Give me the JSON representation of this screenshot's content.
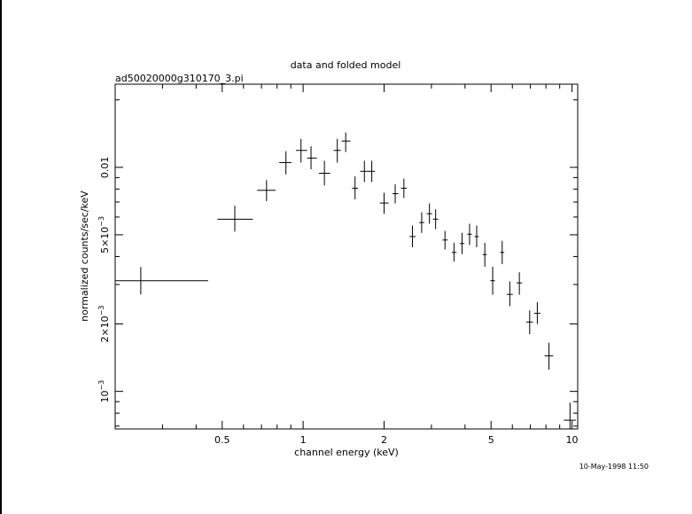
{
  "chart_data": {
    "type": "scatter",
    "title": "data and folded model",
    "subtitle": "ad50020000g310170_3.pi",
    "xlabel": "channel energy (keV)",
    "ylabel": "normalized counts/sec/keV",
    "timestamp": "10-May-1998 11:50",
    "x_scale": "log",
    "y_scale": "log",
    "xlim": [
      0.2,
      10.5
    ],
    "ylim": [
      0.00068,
      0.0235
    ],
    "grid": false,
    "x_ticks": [
      {
        "value": 0.5,
        "label": "0.5"
      },
      {
        "value": 1,
        "label": "1"
      },
      {
        "value": 2,
        "label": "2"
      },
      {
        "value": 5,
        "label": "5"
      },
      {
        "value": 10,
        "label": "10"
      }
    ],
    "y_ticks": [
      {
        "value": 0.001,
        "label": "10",
        "exp": "−3"
      },
      {
        "value": 0.002,
        "label": "2×10",
        "exp": "−3"
      },
      {
        "value": 0.005,
        "label": "5×10",
        "exp": "−3"
      },
      {
        "value": 0.01,
        "label": "0.01",
        "exp": ""
      }
    ],
    "series": [
      {
        "points": [
          {
            "x": 0.249,
            "xlo": 0.2,
            "xhi": 0.443,
            "y": 0.00312,
            "ylo": 0.00271,
            "yhi": 0.00359
          },
          {
            "x": 0.557,
            "xlo": 0.48,
            "xhi": 0.65,
            "y": 0.00587,
            "ylo": 0.00517,
            "yhi": 0.00674
          },
          {
            "x": 0.731,
            "xlo": 0.675,
            "xhi": 0.79,
            "y": 0.0079,
            "ylo": 0.00707,
            "yhi": 0.00877
          },
          {
            "x": 0.863,
            "xlo": 0.815,
            "xhi": 0.905,
            "y": 0.0105,
            "ylo": 0.0093,
            "yhi": 0.0118
          },
          {
            "x": 0.982,
            "xlo": 0.94,
            "xhi": 1.035,
            "y": 0.0119,
            "ylo": 0.0105,
            "yhi": 0.0134
          },
          {
            "x": 1.07,
            "xlo": 1.035,
            "xhi": 1.125,
            "y": 0.011,
            "ylo": 0.0098,
            "yhi": 0.0124
          },
          {
            "x": 1.2,
            "xlo": 1.145,
            "xhi": 1.26,
            "y": 0.00941,
            "ylo": 0.0083,
            "yhi": 0.0107
          },
          {
            "x": 1.34,
            "xlo": 1.3,
            "xhi": 1.38,
            "y": 0.0119,
            "ylo": 0.0105,
            "yhi": 0.0134
          },
          {
            "x": 1.44,
            "xlo": 1.39,
            "xhi": 1.5,
            "y": 0.0131,
            "ylo": 0.0117,
            "yhi": 0.0143
          },
          {
            "x": 1.56,
            "xlo": 1.52,
            "xhi": 1.6,
            "y": 0.00807,
            "ylo": 0.0072,
            "yhi": 0.0091
          },
          {
            "x": 1.69,
            "xlo": 1.63,
            "xhi": 1.74,
            "y": 0.0096,
            "ylo": 0.0086,
            "yhi": 0.0107
          },
          {
            "x": 1.8,
            "xlo": 1.74,
            "xhi": 1.85,
            "y": 0.0096,
            "ylo": 0.0086,
            "yhi": 0.0107
          },
          {
            "x": 2.0,
            "xlo": 1.93,
            "xhi": 2.08,
            "y": 0.00693,
            "ylo": 0.0062,
            "yhi": 0.0077
          },
          {
            "x": 2.2,
            "xlo": 2.15,
            "xhi": 2.26,
            "y": 0.00763,
            "ylo": 0.0069,
            "yhi": 0.0084
          },
          {
            "x": 2.37,
            "xlo": 2.31,
            "xhi": 2.43,
            "y": 0.00807,
            "ylo": 0.0073,
            "yhi": 0.0089
          },
          {
            "x": 2.55,
            "xlo": 2.49,
            "xhi": 2.62,
            "y": 0.00491,
            "ylo": 0.0044,
            "yhi": 0.0055
          },
          {
            "x": 2.76,
            "xlo": 2.7,
            "xhi": 2.82,
            "y": 0.00567,
            "ylo": 0.0051,
            "yhi": 0.0063
          },
          {
            "x": 2.95,
            "xlo": 2.88,
            "xhi": 3.02,
            "y": 0.00621,
            "ylo": 0.0056,
            "yhi": 0.0069
          },
          {
            "x": 3.11,
            "xlo": 3.04,
            "xhi": 3.18,
            "y": 0.00587,
            "ylo": 0.0053,
            "yhi": 0.0065
          },
          {
            "x": 3.37,
            "xlo": 3.3,
            "xhi": 3.45,
            "y": 0.00474,
            "ylo": 0.0043,
            "yhi": 0.0052
          },
          {
            "x": 3.64,
            "xlo": 3.57,
            "xhi": 3.72,
            "y": 0.00417,
            "ylo": 0.0038,
            "yhi": 0.0046
          },
          {
            "x": 3.9,
            "xlo": 3.82,
            "xhi": 3.98,
            "y": 0.00457,
            "ylo": 0.0041,
            "yhi": 0.0051
          },
          {
            "x": 4.16,
            "xlo": 4.08,
            "xhi": 4.24,
            "y": 0.00503,
            "ylo": 0.0045,
            "yhi": 0.0056
          },
          {
            "x": 4.42,
            "xlo": 4.34,
            "xhi": 4.5,
            "y": 0.00491,
            "ylo": 0.0044,
            "yhi": 0.0055
          },
          {
            "x": 4.74,
            "xlo": 4.66,
            "xhi": 4.82,
            "y": 0.00408,
            "ylo": 0.0036,
            "yhi": 0.0046
          },
          {
            "x": 5.07,
            "xlo": 4.97,
            "xhi": 5.17,
            "y": 0.00312,
            "ylo": 0.0027,
            "yhi": 0.0036
          },
          {
            "x": 5.5,
            "xlo": 5.4,
            "xhi": 5.6,
            "y": 0.00417,
            "ylo": 0.0037,
            "yhi": 0.0047
          },
          {
            "x": 5.87,
            "xlo": 5.72,
            "xhi": 6.02,
            "y": 0.00271,
            "ylo": 0.0024,
            "yhi": 0.0031
          },
          {
            "x": 6.37,
            "xlo": 6.22,
            "xhi": 6.52,
            "y": 0.00305,
            "ylo": 0.0027,
            "yhi": 0.0034
          },
          {
            "x": 6.96,
            "xlo": 6.76,
            "xhi": 7.16,
            "y": 0.00204,
            "ylo": 0.0018,
            "yhi": 0.0023
          },
          {
            "x": 7.43,
            "xlo": 7.23,
            "xhi": 7.63,
            "y": 0.00223,
            "ylo": 0.002,
            "yhi": 0.0025
          },
          {
            "x": 8.21,
            "xlo": 7.91,
            "xhi": 8.51,
            "y": 0.00144,
            "ylo": 0.00125,
            "yhi": 0.00165
          },
          {
            "x": 9.83,
            "xlo": 9.33,
            "xhi": 10.33,
            "y": 0.000744,
            "ylo": 0.0006,
            "yhi": 0.00089
          }
        ]
      }
    ]
  }
}
